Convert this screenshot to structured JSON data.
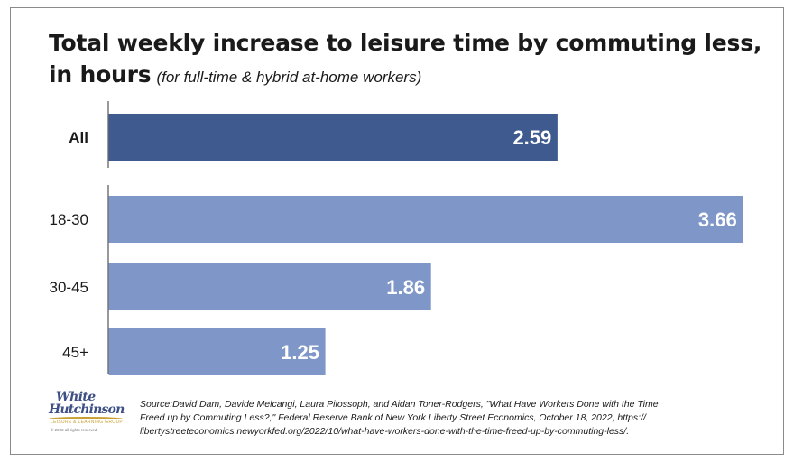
{
  "chart_data": {
    "type": "bar",
    "orientation": "horizontal",
    "title": "Total weekly increase to leisure time by commuting less,",
    "title_line2": "in hours",
    "subtitle": "(for full-time & hybrid at-home workers)",
    "categories": [
      "All",
      "18-30",
      "30-45",
      "45+"
    ],
    "values": [
      2.59,
      3.66,
      1.86,
      1.25
    ],
    "value_labels": [
      "2.59",
      "3.66",
      "1.86",
      "1.25"
    ],
    "groups": [
      [
        "All"
      ],
      [
        "18-30",
        "30-45",
        "45+"
      ]
    ],
    "xlim": [
      0,
      3.75
    ],
    "grid": false,
    "legend": "none",
    "colors": {
      "All": "#3f5a8e",
      "18-30": "#7f97c8",
      "30-45": "#7f97c8",
      "45+": "#7f97c8",
      "value_text": "#ffffff",
      "axis": "#555555"
    }
  },
  "logo": {
    "line1": "White",
    "line2": "Hutchinson",
    "tagline": "LEISURE & LEARNING GROUP",
    "rights": "© 2022 all rights reserved"
  },
  "source": {
    "line1": "Source:David Dam, Davide Melcangi, Laura Pilossoph, and Aidan Toner-Rodgers, \"What Have Workers Done with the Time",
    "line2": "Freed up by Commuting Less?,\" Federal Reserve Bank of New York Liberty Street Economics, October 18, 2022, https://",
    "line3": "libertystreeteconomics.newyorkfed.org/2022/10/what-have-workers-done-with-the-time-freed-up-by-commuting-less/."
  }
}
